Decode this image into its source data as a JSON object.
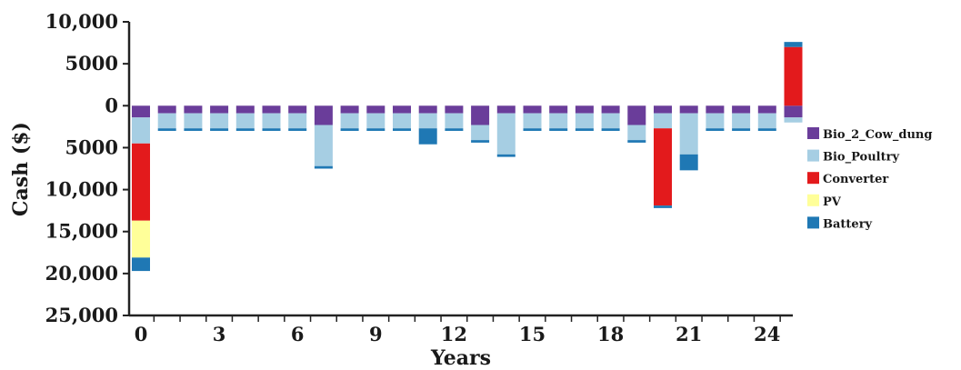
{
  "chart_data": {
    "type": "bar",
    "stacked": true,
    "xlabel": "Years",
    "ylabel": "Cash ($)",
    "ylim": [
      -25000,
      10000
    ],
    "y_ticks": [
      10000,
      5000,
      0,
      -5000,
      -10000,
      -15000,
      -20000,
      -25000
    ],
    "y_tick_labels": [
      "10,000",
      "5000",
      "0",
      "5000",
      "10,000",
      "15,000",
      "20,000",
      "25,000"
    ],
    "x_ticks": [
      0,
      3,
      6,
      9,
      12,
      15,
      18,
      21,
      24
    ],
    "x_tick_labels": [
      "0",
      "3",
      "6",
      "9",
      "12",
      "15",
      "18",
      "21",
      "24"
    ],
    "x": [
      0,
      1,
      2,
      3,
      4,
      5,
      6,
      7,
      8,
      9,
      10,
      11,
      12,
      13,
      14,
      15,
      16,
      17,
      18,
      19,
      20,
      21,
      22,
      23,
      24,
      25
    ],
    "legend_position": "right",
    "series": [
      {
        "name": "Bio_2_Cow_dung",
        "color": "#6a3d9a",
        "values": [
          -1400,
          -900,
          -900,
          -900,
          -900,
          -900,
          -900,
          -2300,
          -900,
          -900,
          -900,
          -900,
          -900,
          -2300,
          -900,
          -900,
          -900,
          -900,
          -900,
          -2300,
          -900,
          -900,
          -900,
          -900,
          -900,
          -1400
        ]
      },
      {
        "name": "Bio_Poultry",
        "color": "#a6cee3",
        "values": [
          -3100,
          -1800,
          -1800,
          -1800,
          -1800,
          -1800,
          -1800,
          -4900,
          -1800,
          -1800,
          -1800,
          -1800,
          -1800,
          -1800,
          -4900,
          -1800,
          -1800,
          -1800,
          -1800,
          -1800,
          -1800,
          -4900,
          -1800,
          -1800,
          -1800,
          -600
        ]
      },
      {
        "name": "Converter",
        "color": "#e31a1c",
        "values": [
          -9200,
          0,
          0,
          0,
          0,
          0,
          0,
          0,
          0,
          0,
          0,
          0,
          0,
          0,
          0,
          0,
          0,
          0,
          0,
          0,
          -9200,
          0,
          0,
          0,
          0,
          7000
        ]
      },
      {
        "name": "PV",
        "color": "#ffff99",
        "values": [
          -4400,
          0,
          0,
          0,
          0,
          0,
          0,
          0,
          0,
          0,
          0,
          0,
          0,
          0,
          0,
          0,
          0,
          0,
          0,
          0,
          0,
          0,
          0,
          0,
          0,
          0
        ]
      },
      {
        "name": "Battery",
        "color": "#1f78b4",
        "values": [
          -1600,
          -300,
          -300,
          -300,
          -300,
          -300,
          -300,
          -300,
          -300,
          -300,
          -300,
          -1900,
          -300,
          -300,
          -300,
          -300,
          -300,
          -300,
          -300,
          -300,
          -300,
          -1900,
          -300,
          -300,
          -300,
          600
        ]
      }
    ]
  }
}
